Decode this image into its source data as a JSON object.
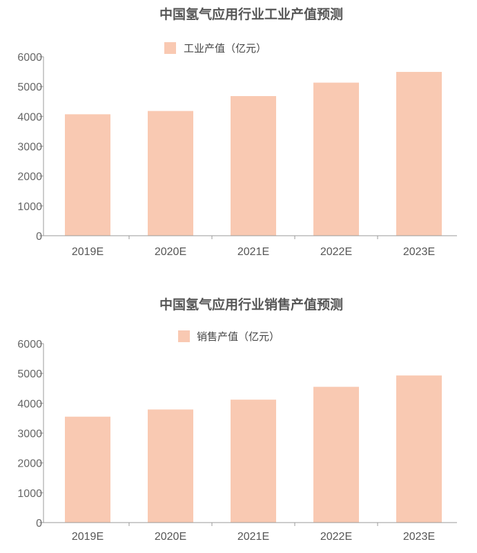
{
  "colors": {
    "bar": "#F9C9B2",
    "axis": "#9a9a9a",
    "title": "#555555"
  },
  "chart_data": [
    {
      "type": "bar",
      "title": "中国氢气应用行业工业产值预测",
      "categories": [
        "2019E",
        "2020E",
        "2021E",
        "2022E",
        "2023E"
      ],
      "series": [
        {
          "name": "工业产值（亿元）",
          "values": [
            4070,
            4180,
            4680,
            5130,
            5490
          ]
        }
      ],
      "ylim": [
        0,
        6000
      ],
      "yticks": [
        "0",
        "1000",
        "2000",
        "3000",
        "4000",
        "5000",
        "6000"
      ],
      "grid": false,
      "legend": "top-center"
    },
    {
      "type": "bar",
      "title": "中国氢气应用行业销售产值预测",
      "categories": [
        "2019E",
        "2020E",
        "2021E",
        "2022E",
        "2023E"
      ],
      "series": [
        {
          "name": "销售产值（亿元）",
          "values": [
            3550,
            3790,
            4120,
            4550,
            4930
          ]
        }
      ],
      "ylim": [
        0,
        6000
      ],
      "yticks": [
        "0",
        "1000",
        "2000",
        "3000",
        "4000",
        "5000",
        "6000"
      ],
      "grid": false,
      "legend": "top-center"
    }
  ]
}
